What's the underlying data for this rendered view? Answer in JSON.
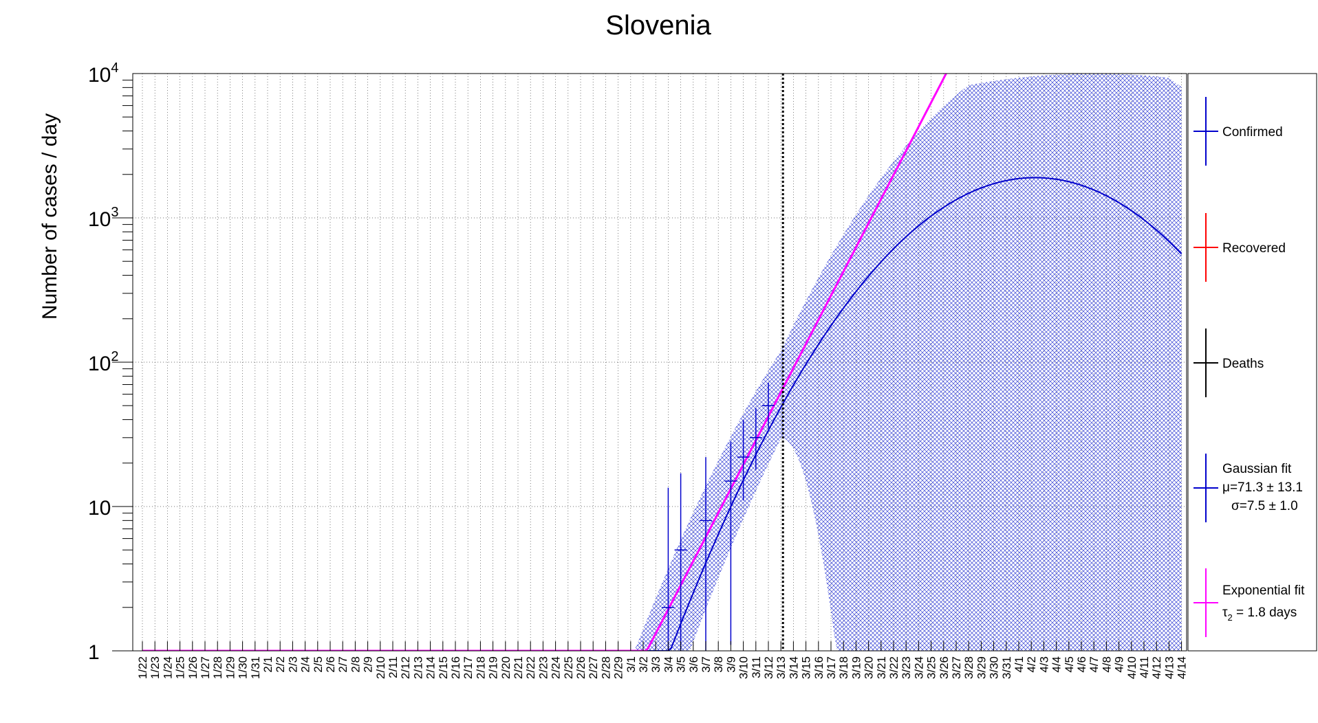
{
  "chart_data": {
    "type": "scatter",
    "title": "Slovenia",
    "xlabel": "",
    "ylabel": "Number of cases / day",
    "y_scale": "log",
    "ylim": [
      1,
      10000
    ],
    "y_ticks": [
      {
        "base": "10",
        "exp": "4"
      },
      {
        "base": "10",
        "exp": "3"
      },
      {
        "base": "10",
        "exp": "2"
      },
      {
        "base": "10",
        "exp": ""
      },
      {
        "base": "1",
        "exp": ""
      }
    ],
    "grid": true,
    "legend_position": "right",
    "x_ticks": [
      "1/22",
      "1/23",
      "1/24",
      "1/25",
      "1/26",
      "1/27",
      "1/28",
      "1/29",
      "1/30",
      "1/31",
      "2/1",
      "2/2",
      "2/3",
      "2/4",
      "2/5",
      "2/6",
      "2/7",
      "2/8",
      "2/9",
      "2/10",
      "2/11",
      "2/12",
      "2/13",
      "2/14",
      "2/15",
      "2/16",
      "2/17",
      "2/18",
      "2/19",
      "2/20",
      "2/21",
      "2/22",
      "2/23",
      "2/24",
      "2/25",
      "2/26",
      "2/27",
      "2/28",
      "2/29",
      "3/1",
      "3/2",
      "3/3",
      "3/4",
      "3/5",
      "3/6",
      "3/7",
      "3/8",
      "3/9",
      "3/10",
      "3/11",
      "3/12",
      "3/13",
      "3/14",
      "3/15",
      "3/16",
      "3/17",
      "3/18",
      "3/19",
      "3/20",
      "3/21",
      "3/22",
      "3/23",
      "3/24",
      "3/25",
      "3/26",
      "3/27",
      "3/28",
      "3/29",
      "3/30",
      "3/31",
      "4/1",
      "4/2",
      "4/3",
      "4/4",
      "4/5",
      "4/6",
      "4/7",
      "4/8",
      "4/9",
      "4/10",
      "4/11",
      "4/12",
      "4/13",
      "4/14"
    ],
    "marker_date": "3/13",
    "confirmed": [
      {
        "x": "3/4",
        "y": 2,
        "ylo": 1,
        "yhi": 13.5
      },
      {
        "x": "3/5",
        "y": 5,
        "ylo": 1,
        "yhi": 17
      },
      {
        "x": "3/7",
        "y": 8,
        "ylo": 1,
        "yhi": 22
      },
      {
        "x": "3/9",
        "y": 15,
        "ylo": 1.1,
        "yhi": 28
      },
      {
        "x": "3/10",
        "y": 22,
        "ylo": 11,
        "yhi": 40
      },
      {
        "x": "3/11",
        "y": 30,
        "ylo": 18,
        "yhi": 48
      },
      {
        "x": "3/12",
        "y": 50,
        "ylo": 35,
        "yhi": 72
      }
    ],
    "gaussian_fit": {
      "mu": 71.3,
      "sigma": 7.5,
      "amplitude": 1900
    },
    "exponential_fit": {
      "doubling_days": 1.8,
      "anchor_x": "3/13",
      "anchor_y": 62
    },
    "legend": [
      {
        "label": "Confirmed",
        "color": "#0000cc"
      },
      {
        "label": "Recovered",
        "color": "#ff0000"
      },
      {
        "label": "Deaths",
        "color": "#000000"
      },
      {
        "label": "Gaussian fit",
        "label2": "μ=71.3 ± 13.1",
        "label3": "σ=7.5 ± 1.0",
        "color": "#0000cc"
      },
      {
        "label": "Exponential fit",
        "label2_sym": "τ",
        "label2_sub": "2",
        "label2_rest": " = 1.8 days",
        "color": "#ff00ff"
      }
    ]
  }
}
